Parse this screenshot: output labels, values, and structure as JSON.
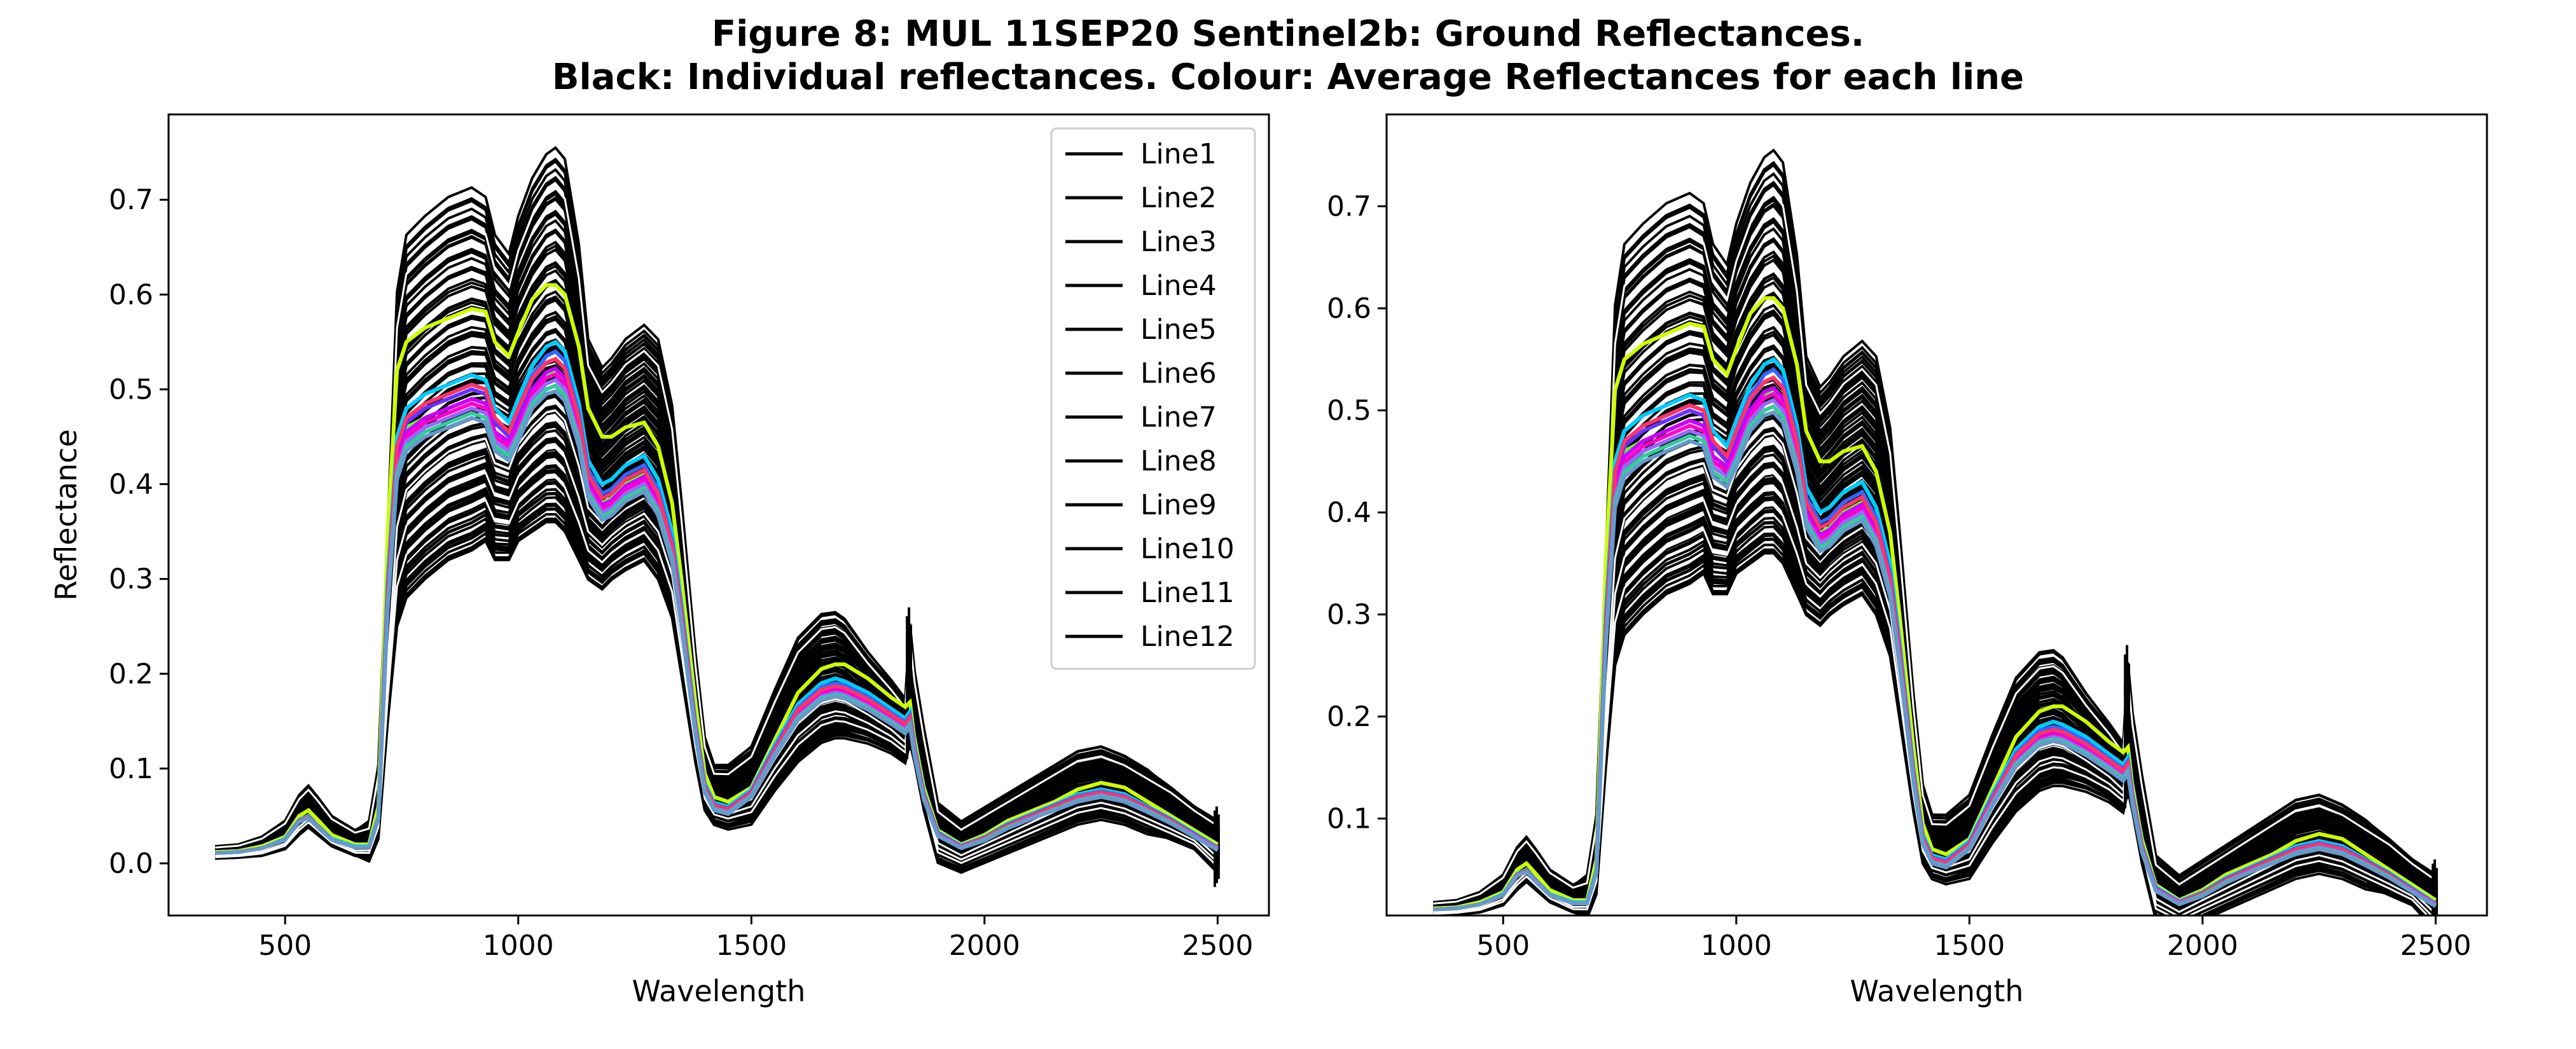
{
  "figure": {
    "title_line1": "Figure 8: MUL 11SEP20  Sentinel2b: Ground Reflectances.",
    "title_line2": "Black: Individual reflectances. Colour: Average Reflectances for each line"
  },
  "chart_data": [
    {
      "type": "line",
      "panel": "left",
      "xlabel": "Wavelength",
      "ylabel": "Reflectance",
      "xlim": [
        250,
        2610
      ],
      "ylim": [
        -0.055,
        0.79
      ],
      "xticks": [
        500,
        1000,
        1500,
        2000,
        2500
      ],
      "yticks": [
        0.0,
        0.1,
        0.2,
        0.3,
        0.4,
        0.5,
        0.6,
        0.7
      ],
      "ytick_labels": [
        "0.0",
        "0.1",
        "0.2",
        "0.3",
        "0.4",
        "0.5",
        "0.6",
        "0.7"
      ],
      "legend": {
        "position": "upper-right",
        "entries": [
          "Line1",
          "Line2",
          "Line3",
          "Line4",
          "Line5",
          "Line6",
          "Line7",
          "Line8",
          "Line9",
          "Line10",
          "Line11",
          "Line12"
        ],
        "line_color": "#000000"
      }
    },
    {
      "type": "line",
      "panel": "right",
      "xlabel": "Wavelength",
      "ylabel": "",
      "xlim": [
        250,
        2610
      ],
      "ylim": [
        0.005,
        0.79
      ],
      "xticks": [
        500,
        1000,
        1500,
        2000,
        2500
      ],
      "yticks": [
        0.1,
        0.2,
        0.3,
        0.4,
        0.5,
        0.6,
        0.7
      ],
      "ytick_labels": [
        "0.1",
        "0.2",
        "0.3",
        "0.4",
        "0.5",
        "0.6",
        "0.7"
      ]
    }
  ],
  "spectra": {
    "wavelengths": [
      350,
      400,
      450,
      500,
      530,
      550,
      570,
      600,
      650,
      680,
      700,
      720,
      740,
      760,
      800,
      850,
      900,
      930,
      950,
      980,
      1000,
      1030,
      1060,
      1080,
      1100,
      1130,
      1150,
      1180,
      1200,
      1230,
      1270,
      1300,
      1330,
      1350,
      1380,
      1400,
      1420,
      1450,
      1500,
      1550,
      1600,
      1650,
      1680,
      1700,
      1750,
      1800,
      1830,
      1840,
      1850,
      1870,
      1900,
      1950,
      2000,
      2050,
      2100,
      2150,
      2200,
      2250,
      2300,
      2350,
      2400,
      2450,
      2500
    ],
    "upper_envelope": [
      0.018,
      0.02,
      0.028,
      0.045,
      0.072,
      0.082,
      0.07,
      0.05,
      0.035,
      0.04,
      0.1,
      0.35,
      0.6,
      0.66,
      0.68,
      0.7,
      0.71,
      0.7,
      0.66,
      0.64,
      0.68,
      0.72,
      0.745,
      0.752,
      0.74,
      0.65,
      0.55,
      0.52,
      0.53,
      0.55,
      0.565,
      0.55,
      0.48,
      0.38,
      0.22,
      0.13,
      0.1,
      0.1,
      0.12,
      0.18,
      0.235,
      0.26,
      0.262,
      0.255,
      0.22,
      0.19,
      0.17,
      0.25,
      0.2,
      0.14,
      0.06,
      0.04,
      0.055,
      0.07,
      0.085,
      0.1,
      0.115,
      0.12,
      0.11,
      0.095,
      0.08,
      0.06,
      0.045
    ],
    "lower_envelope": [
      0.005,
      0.006,
      0.008,
      0.015,
      0.03,
      0.038,
      0.03,
      0.018,
      0.008,
      0.007,
      0.03,
      0.15,
      0.25,
      0.28,
      0.3,
      0.32,
      0.33,
      0.34,
      0.32,
      0.32,
      0.34,
      0.35,
      0.36,
      0.36,
      0.35,
      0.32,
      0.3,
      0.29,
      0.3,
      0.31,
      0.32,
      0.3,
      0.26,
      0.2,
      0.11,
      0.06,
      0.045,
      0.04,
      0.045,
      0.08,
      0.11,
      0.13,
      0.135,
      0.135,
      0.13,
      0.12,
      0.11,
      0.13,
      0.11,
      0.06,
      0.005,
      -0.005,
      0.005,
      0.015,
      0.025,
      0.035,
      0.045,
      0.05,
      0.045,
      0.035,
      0.025,
      0.015,
      -0.01
    ],
    "averages": [
      {
        "name": "Line1",
        "color": "#ccff00",
        "values": [
          0.012,
          0.013,
          0.018,
          0.028,
          0.05,
          0.056,
          0.046,
          0.03,
          0.02,
          0.02,
          0.06,
          0.35,
          0.52,
          0.55,
          0.565,
          0.575,
          0.585,
          0.582,
          0.55,
          0.535,
          0.56,
          0.595,
          0.61,
          0.61,
          0.6,
          0.545,
          0.48,
          0.45,
          0.45,
          0.46,
          0.465,
          0.44,
          0.38,
          0.3,
          0.17,
          0.095,
          0.07,
          0.065,
          0.08,
          0.13,
          0.18,
          0.205,
          0.21,
          0.21,
          0.195,
          0.175,
          0.165,
          0.17,
          0.13,
          0.08,
          0.035,
          0.02,
          0.03,
          0.045,
          0.055,
          0.065,
          0.078,
          0.085,
          0.08,
          0.065,
          0.05,
          0.035,
          0.02
        ]
      },
      {
        "name": "Line2",
        "color": "#66ff33",
        "values": [
          0.011,
          0.012,
          0.016,
          0.025,
          0.045,
          0.05,
          0.04,
          0.026,
          0.018,
          0.018,
          0.05,
          0.28,
          0.43,
          0.46,
          0.47,
          0.48,
          0.49,
          0.485,
          0.455,
          0.445,
          0.465,
          0.5,
          0.515,
          0.52,
          0.51,
          0.46,
          0.4,
          0.38,
          0.385,
          0.4,
          0.41,
          0.38,
          0.33,
          0.26,
          0.14,
          0.08,
          0.06,
          0.058,
          0.075,
          0.12,
          0.16,
          0.18,
          0.185,
          0.18,
          0.17,
          0.155,
          0.145,
          0.15,
          0.12,
          0.07,
          0.032,
          0.018,
          0.026,
          0.04,
          0.05,
          0.06,
          0.07,
          0.075,
          0.07,
          0.058,
          0.045,
          0.03,
          0.016
        ]
      },
      {
        "name": "Line3",
        "color": "#00ffcc",
        "values": [
          0.011,
          0.012,
          0.016,
          0.026,
          0.046,
          0.05,
          0.04,
          0.026,
          0.018,
          0.018,
          0.05,
          0.3,
          0.45,
          0.48,
          0.495,
          0.505,
          0.515,
          0.51,
          0.48,
          0.465,
          0.49,
          0.525,
          0.545,
          0.55,
          0.54,
          0.485,
          0.425,
          0.4,
          0.405,
          0.42,
          0.43,
          0.405,
          0.35,
          0.275,
          0.15,
          0.085,
          0.064,
          0.06,
          0.078,
          0.125,
          0.168,
          0.19,
          0.195,
          0.192,
          0.18,
          0.163,
          0.153,
          0.16,
          0.125,
          0.075,
          0.033,
          0.019,
          0.028,
          0.042,
          0.052,
          0.062,
          0.073,
          0.078,
          0.073,
          0.06,
          0.047,
          0.032,
          0.017
        ]
      },
      {
        "name": "Line4",
        "color": "#00ccff",
        "values": [
          0.011,
          0.012,
          0.016,
          0.026,
          0.046,
          0.05,
          0.04,
          0.026,
          0.018,
          0.018,
          0.05,
          0.3,
          0.45,
          0.48,
          0.495,
          0.505,
          0.515,
          0.51,
          0.48,
          0.465,
          0.49,
          0.525,
          0.545,
          0.55,
          0.54,
          0.485,
          0.425,
          0.4,
          0.405,
          0.42,
          0.43,
          0.405,
          0.35,
          0.275,
          0.15,
          0.085,
          0.064,
          0.06,
          0.078,
          0.125,
          0.168,
          0.19,
          0.195,
          0.192,
          0.18,
          0.163,
          0.153,
          0.16,
          0.125,
          0.075,
          0.033,
          0.019,
          0.028,
          0.042,
          0.052,
          0.062,
          0.073,
          0.078,
          0.073,
          0.06,
          0.047,
          0.032,
          0.017
        ]
      },
      {
        "name": "Line5",
        "color": "#3366ff",
        "values": [
          0.011,
          0.012,
          0.016,
          0.025,
          0.045,
          0.049,
          0.039,
          0.025,
          0.017,
          0.017,
          0.048,
          0.29,
          0.44,
          0.47,
          0.485,
          0.495,
          0.505,
          0.5,
          0.47,
          0.455,
          0.48,
          0.515,
          0.535,
          0.54,
          0.53,
          0.475,
          0.415,
          0.39,
          0.395,
          0.41,
          0.42,
          0.395,
          0.34,
          0.268,
          0.146,
          0.082,
          0.062,
          0.058,
          0.076,
          0.122,
          0.164,
          0.186,
          0.19,
          0.188,
          0.176,
          0.159,
          0.149,
          0.156,
          0.122,
          0.073,
          0.032,
          0.018,
          0.027,
          0.041,
          0.051,
          0.061,
          0.071,
          0.076,
          0.071,
          0.059,
          0.046,
          0.031,
          0.016
        ]
      },
      {
        "name": "Line6",
        "color": "#6633ff",
        "values": [
          0.011,
          0.012,
          0.016,
          0.025,
          0.045,
          0.049,
          0.039,
          0.025,
          0.017,
          0.017,
          0.048,
          0.285,
          0.435,
          0.465,
          0.48,
          0.49,
          0.5,
          0.495,
          0.465,
          0.45,
          0.475,
          0.51,
          0.528,
          0.532,
          0.522,
          0.47,
          0.41,
          0.385,
          0.39,
          0.405,
          0.415,
          0.39,
          0.335,
          0.265,
          0.144,
          0.081,
          0.061,
          0.057,
          0.075,
          0.12,
          0.162,
          0.183,
          0.187,
          0.185,
          0.173,
          0.157,
          0.147,
          0.154,
          0.12,
          0.072,
          0.031,
          0.018,
          0.027,
          0.04,
          0.05,
          0.06,
          0.07,
          0.075,
          0.07,
          0.058,
          0.045,
          0.03,
          0.016
        ]
      },
      {
        "name": "Line7",
        "color": "#cc00ff",
        "values": [
          0.011,
          0.012,
          0.016,
          0.025,
          0.044,
          0.048,
          0.038,
          0.025,
          0.017,
          0.017,
          0.047,
          0.28,
          0.425,
          0.455,
          0.47,
          0.48,
          0.49,
          0.485,
          0.455,
          0.445,
          0.465,
          0.5,
          0.518,
          0.522,
          0.512,
          0.46,
          0.402,
          0.378,
          0.383,
          0.398,
          0.408,
          0.383,
          0.33,
          0.26,
          0.141,
          0.079,
          0.06,
          0.056,
          0.074,
          0.118,
          0.159,
          0.18,
          0.184,
          0.182,
          0.17,
          0.155,
          0.145,
          0.152,
          0.118,
          0.071,
          0.031,
          0.017,
          0.026,
          0.039,
          0.049,
          0.059,
          0.069,
          0.074,
          0.069,
          0.057,
          0.044,
          0.03,
          0.015
        ]
      },
      {
        "name": "Line8",
        "color": "#ff00cc",
        "values": [
          0.011,
          0.012,
          0.016,
          0.025,
          0.044,
          0.048,
          0.038,
          0.025,
          0.017,
          0.017,
          0.047,
          0.275,
          0.42,
          0.45,
          0.465,
          0.475,
          0.485,
          0.48,
          0.45,
          0.44,
          0.46,
          0.495,
          0.512,
          0.516,
          0.506,
          0.455,
          0.398,
          0.374,
          0.379,
          0.394,
          0.404,
          0.379,
          0.327,
          0.258,
          0.14,
          0.078,
          0.059,
          0.055,
          0.073,
          0.117,
          0.157,
          0.178,
          0.182,
          0.18,
          0.168,
          0.153,
          0.143,
          0.15,
          0.117,
          0.07,
          0.03,
          0.017,
          0.026,
          0.039,
          0.049,
          0.058,
          0.068,
          0.073,
          0.068,
          0.057,
          0.044,
          0.029,
          0.015
        ]
      },
      {
        "name": "Line9",
        "color": "#ff3366",
        "values": [
          0.011,
          0.012,
          0.016,
          0.025,
          0.045,
          0.049,
          0.039,
          0.025,
          0.017,
          0.017,
          0.048,
          0.285,
          0.44,
          0.47,
          0.485,
          0.495,
          0.505,
          0.5,
          0.47,
          0.455,
          0.48,
          0.512,
          0.528,
          0.532,
          0.522,
          0.47,
          0.41,
          0.385,
          0.39,
          0.405,
          0.415,
          0.39,
          0.335,
          0.265,
          0.144,
          0.081,
          0.061,
          0.057,
          0.075,
          0.12,
          0.162,
          0.183,
          0.187,
          0.185,
          0.173,
          0.157,
          0.147,
          0.154,
          0.12,
          0.072,
          0.031,
          0.018,
          0.027,
          0.04,
          0.05,
          0.06,
          0.07,
          0.075,
          0.07,
          0.058,
          0.045,
          0.03,
          0.016
        ]
      },
      {
        "name": "Line10",
        "color": "#9966ff",
        "values": [
          0.011,
          0.012,
          0.016,
          0.025,
          0.044,
          0.048,
          0.038,
          0.025,
          0.017,
          0.017,
          0.047,
          0.272,
          0.415,
          0.445,
          0.46,
          0.47,
          0.48,
          0.475,
          0.445,
          0.435,
          0.455,
          0.49,
          0.506,
          0.51,
          0.5,
          0.45,
          0.394,
          0.37,
          0.375,
          0.39,
          0.4,
          0.375,
          0.324,
          0.255,
          0.139,
          0.077,
          0.058,
          0.054,
          0.072,
          0.116,
          0.155,
          0.176,
          0.18,
          0.178,
          0.166,
          0.151,
          0.141,
          0.148,
          0.116,
          0.069,
          0.03,
          0.017,
          0.025,
          0.038,
          0.048,
          0.057,
          0.067,
          0.072,
          0.067,
          0.056,
          0.043,
          0.029,
          0.015
        ]
      },
      {
        "name": "Line11",
        "color": "#33cc99",
        "values": [
          0.011,
          0.012,
          0.016,
          0.025,
          0.044,
          0.048,
          0.038,
          0.025,
          0.017,
          0.017,
          0.047,
          0.27,
          0.41,
          0.44,
          0.455,
          0.465,
          0.475,
          0.47,
          0.44,
          0.43,
          0.45,
          0.485,
          0.5,
          0.504,
          0.494,
          0.445,
          0.39,
          0.366,
          0.371,
          0.386,
          0.396,
          0.371,
          0.32,
          0.252,
          0.137,
          0.076,
          0.057,
          0.053,
          0.071,
          0.114,
          0.153,
          0.174,
          0.178,
          0.176,
          0.164,
          0.149,
          0.139,
          0.146,
          0.114,
          0.068,
          0.029,
          0.016,
          0.025,
          0.038,
          0.047,
          0.057,
          0.066,
          0.071,
          0.066,
          0.055,
          0.043,
          0.028,
          0.014
        ]
      },
      {
        "name": "Line12",
        "color": "#6699cc",
        "values": [
          0.011,
          0.012,
          0.016,
          0.025,
          0.044,
          0.048,
          0.038,
          0.025,
          0.017,
          0.017,
          0.047,
          0.268,
          0.405,
          0.435,
          0.45,
          0.46,
          0.47,
          0.465,
          0.435,
          0.425,
          0.445,
          0.48,
          0.495,
          0.498,
          0.488,
          0.44,
          0.386,
          0.362,
          0.367,
          0.382,
          0.392,
          0.367,
          0.317,
          0.25,
          0.136,
          0.075,
          0.056,
          0.052,
          0.07,
          0.113,
          0.151,
          0.172,
          0.176,
          0.174,
          0.162,
          0.147,
          0.137,
          0.144,
          0.113,
          0.067,
          0.029,
          0.016,
          0.024,
          0.037,
          0.047,
          0.056,
          0.065,
          0.07,
          0.065,
          0.054,
          0.042,
          0.028,
          0.014
        ]
      }
    ]
  }
}
